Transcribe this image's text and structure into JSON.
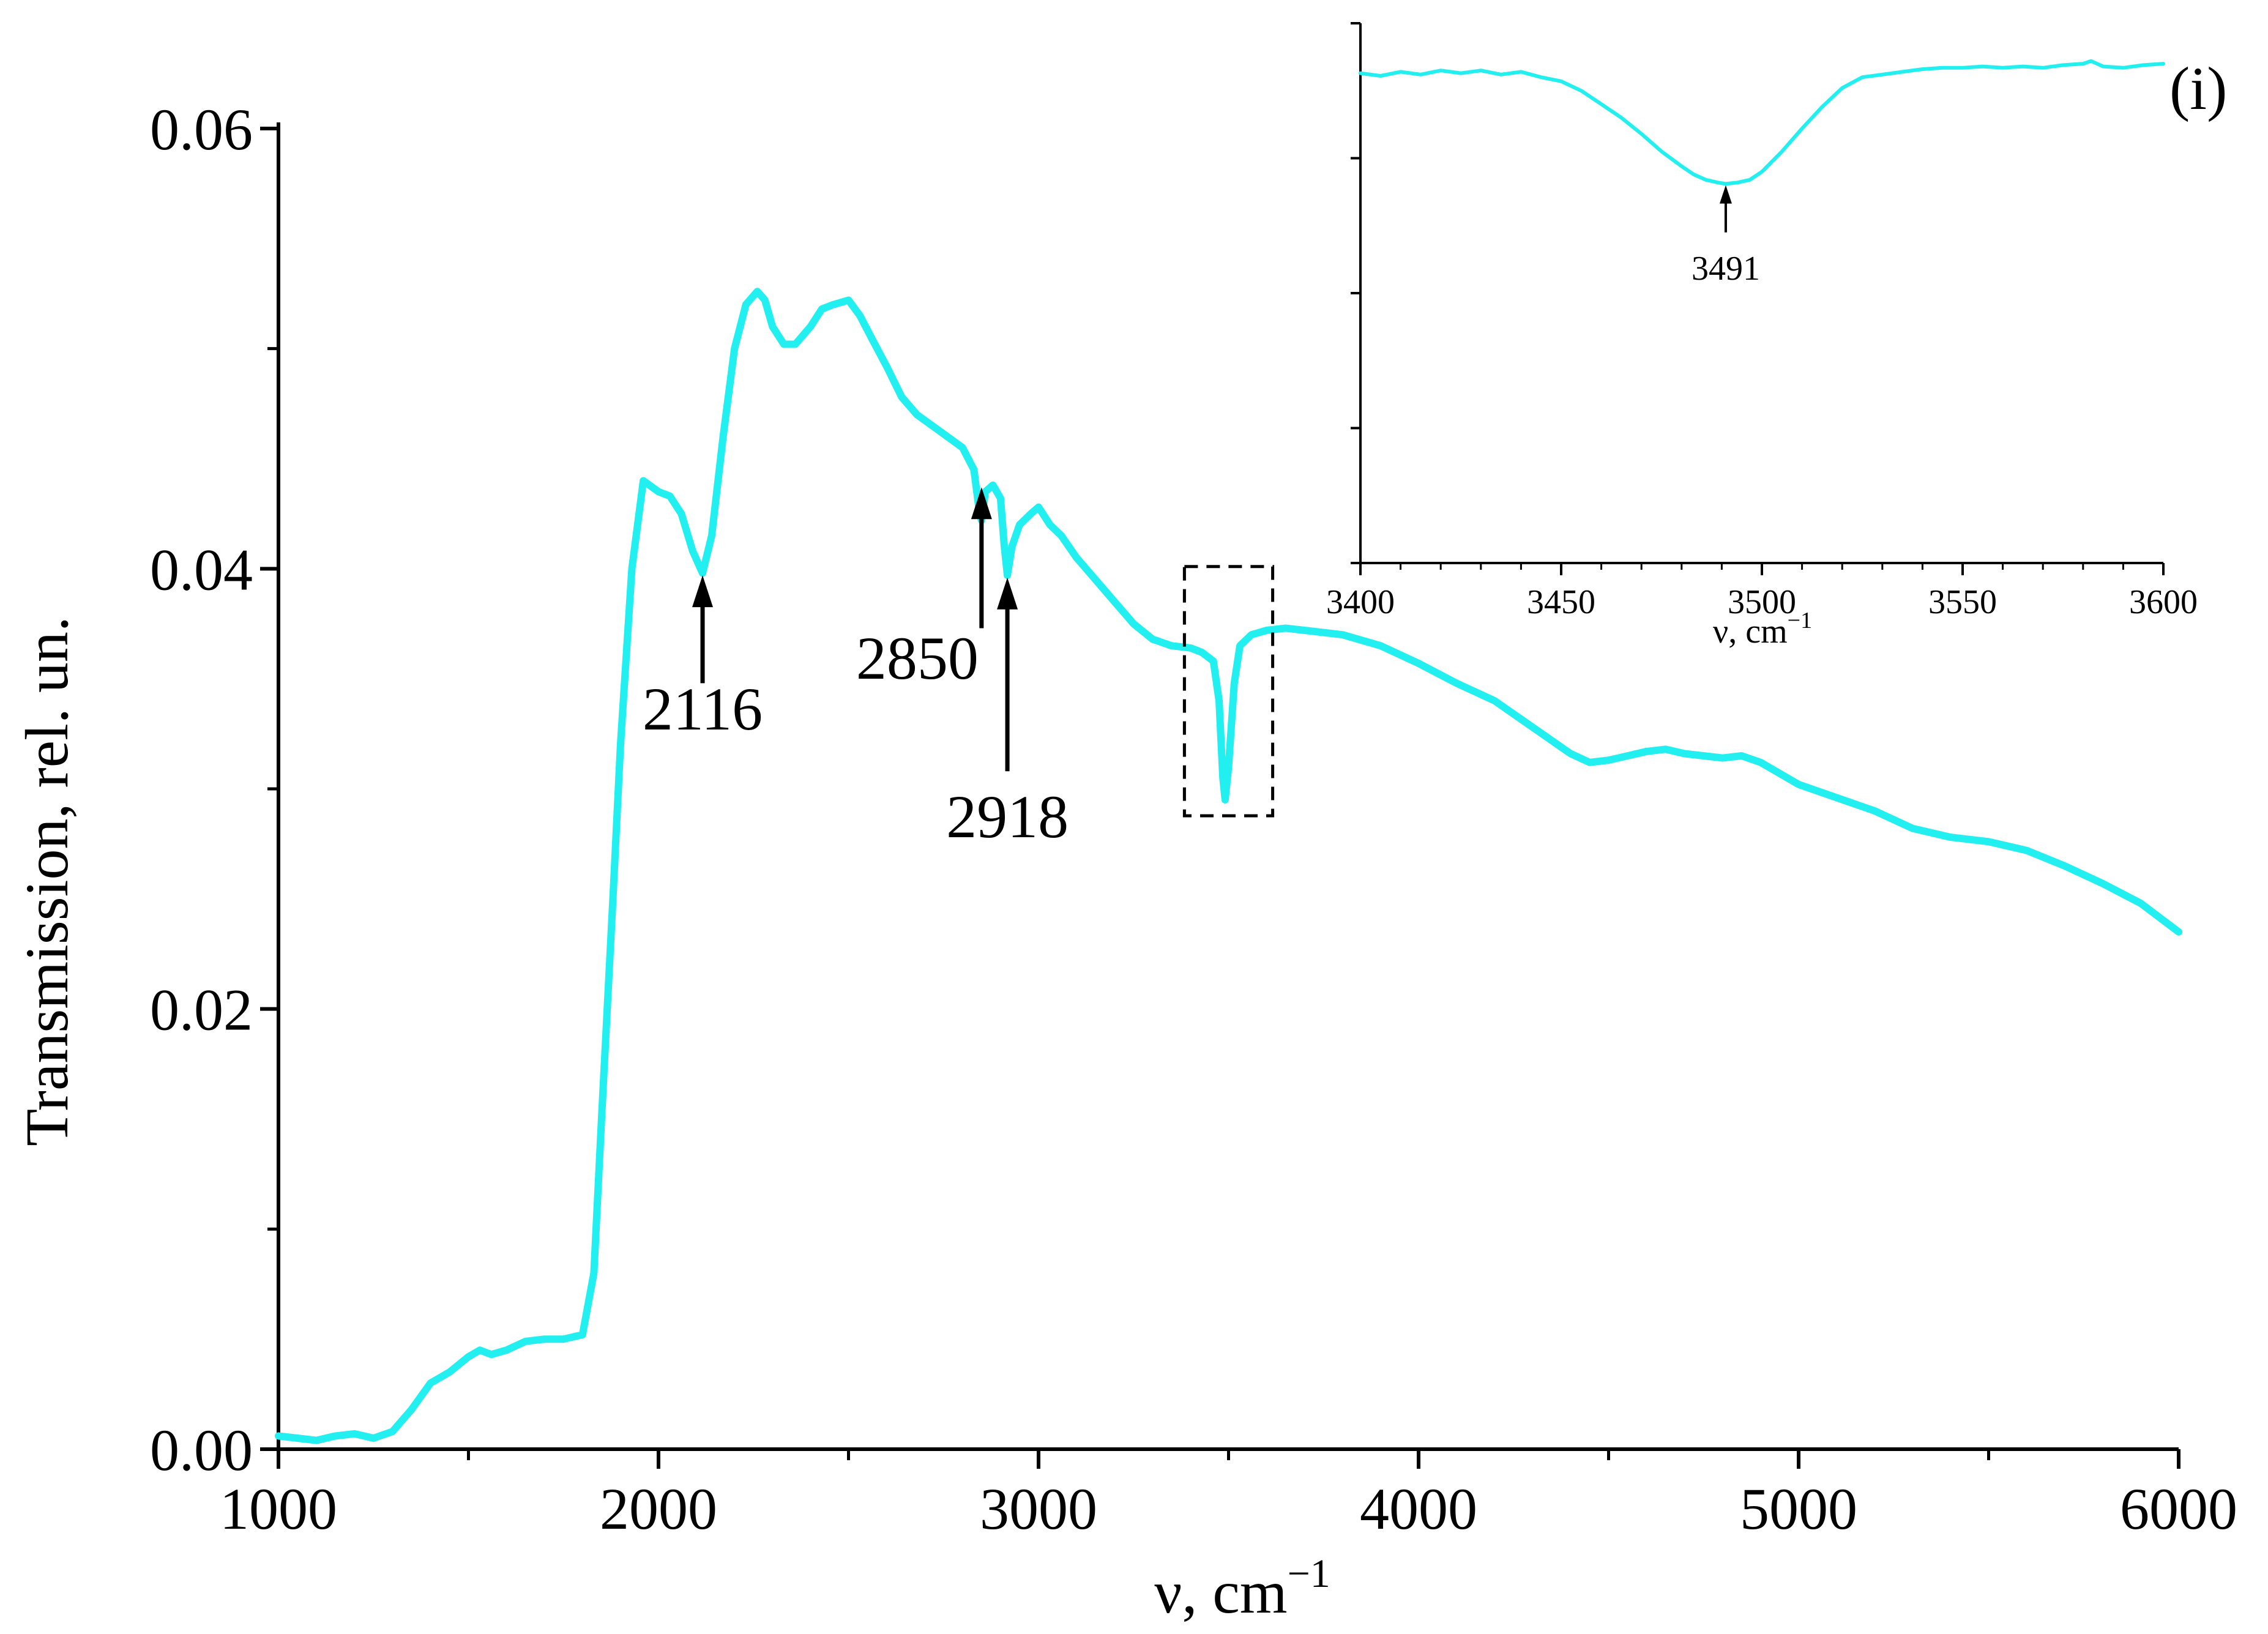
{
  "chart_data": [
    {
      "type": "line",
      "role": "main",
      "xlabel_symbol": "ν, cm",
      "xlabel_sup": "−1",
      "ylabel": "Transmission, rel. un.",
      "xlim": [
        1000,
        6000
      ],
      "ylim": [
        0.0,
        0.06
      ],
      "x_ticks": [
        1000,
        2000,
        3000,
        4000,
        5000,
        6000
      ],
      "x_tick_labels": [
        "1000",
        "2000",
        "3000",
        "4000",
        "5000",
        "6000"
      ],
      "y_ticks": [
        0.0,
        0.02,
        0.04,
        0.06
      ],
      "y_tick_labels": [
        "0.00",
        "0.02",
        "0.04",
        "0.06"
      ],
      "y_minor_ticks": [
        0.01,
        0.03,
        0.05
      ],
      "x_minor_ticks": [
        1500,
        2500,
        3500,
        4500,
        5500
      ],
      "grid": false,
      "series_color": "#22f0f0",
      "series": [
        {
          "x": [
            1000,
            1050,
            1100,
            1150,
            1200,
            1250,
            1300,
            1350,
            1400,
            1450,
            1500,
            1530,
            1560,
            1600,
            1650,
            1700,
            1750,
            1800,
            1830,
            1850,
            1880,
            1900,
            1930,
            1960,
            2000,
            2030,
            2060,
            2090,
            2116,
            2140,
            2170,
            2200,
            2230,
            2260,
            2280,
            2300,
            2330,
            2360,
            2400,
            2430,
            2460,
            2500,
            2530,
            2560,
            2600,
            2640,
            2680,
            2720,
            2760,
            2800,
            2830,
            2845,
            2850,
            2860,
            2880,
            2900,
            2910,
            2918,
            2930,
            2950,
            2980,
            3000,
            3030,
            3060,
            3100,
            3150,
            3200,
            3250,
            3300,
            3350,
            3400,
            3430,
            3460,
            3475,
            3485,
            3491,
            3500,
            3515,
            3530,
            3560,
            3600,
            3650,
            3700,
            3800,
            3900,
            4000,
            4100,
            4200,
            4300,
            4400,
            4450,
            4500,
            4600,
            4650,
            4700,
            4800,
            4850,
            4900,
            5000,
            5100,
            5200,
            5300,
            5400,
            5500,
            5600,
            5700,
            5800,
            5900,
            6000
          ],
          "y": [
            0.0006,
            0.0005,
            0.0004,
            0.0006,
            0.0007,
            0.0005,
            0.0008,
            0.0018,
            0.003,
            0.0035,
            0.0042,
            0.0045,
            0.0043,
            0.0045,
            0.0049,
            0.005,
            0.005,
            0.0052,
            0.008,
            0.015,
            0.025,
            0.032,
            0.04,
            0.044,
            0.0435,
            0.0433,
            0.0425,
            0.0408,
            0.0398,
            0.0415,
            0.046,
            0.05,
            0.052,
            0.0526,
            0.0522,
            0.051,
            0.0502,
            0.0502,
            0.051,
            0.0518,
            0.052,
            0.0522,
            0.0515,
            0.0505,
            0.0492,
            0.0478,
            0.047,
            0.0465,
            0.046,
            0.0455,
            0.0445,
            0.0425,
            0.0422,
            0.0435,
            0.0438,
            0.0432,
            0.041,
            0.0397,
            0.041,
            0.042,
            0.0425,
            0.0428,
            0.042,
            0.0415,
            0.0405,
            0.0395,
            0.0385,
            0.0375,
            0.0368,
            0.0365,
            0.0364,
            0.0362,
            0.0358,
            0.034,
            0.0305,
            0.0295,
            0.031,
            0.0348,
            0.0365,
            0.037,
            0.0372,
            0.0373,
            0.0372,
            0.037,
            0.0365,
            0.0357,
            0.0348,
            0.034,
            0.0328,
            0.0316,
            0.0312,
            0.0313,
            0.0317,
            0.0318,
            0.0316,
            0.0314,
            0.0315,
            0.0312,
            0.0302,
            0.0296,
            0.029,
            0.0282,
            0.0278,
            0.0276,
            0.0272,
            0.0265,
            0.0257,
            0.0248,
            0.0235
          ]
        }
      ],
      "annotations": [
        {
          "label": "2116",
          "x": 2116
        },
        {
          "label": "2850",
          "x": 2850
        },
        {
          "label": "2918",
          "x": 2918
        }
      ],
      "highlight_box": {
        "x_range": [
          3400,
          3600
        ],
        "y_range": [
          0.029,
          0.0401
        ],
        "style": "dashed"
      }
    },
    {
      "type": "line",
      "role": "inset",
      "panel_label": "(i)",
      "xlabel_symbol": "ν, cm",
      "xlabel_sup": "−1",
      "xlim": [
        3400,
        3600
      ],
      "ylim": [
        0,
        4
      ],
      "x_ticks": [
        3400,
        3450,
        3500,
        3550,
        3600
      ],
      "x_tick_labels": [
        "3400",
        "3450",
        "3500",
        "3550",
        "3600"
      ],
      "x_minor_ticks": [
        3410,
        3420,
        3430,
        3440,
        3460,
        3470,
        3480,
        3490,
        3510,
        3520,
        3530,
        3540,
        3560,
        3570,
        3580,
        3590
      ],
      "y_ticks": [
        0,
        1,
        2,
        3,
        4
      ],
      "series": [
        {
          "x": [
            3400,
            3405,
            3410,
            3415,
            3420,
            3425,
            3430,
            3435,
            3440,
            3445,
            3450,
            3455,
            3460,
            3465,
            3470,
            3475,
            3480,
            3483,
            3486,
            3489,
            3491,
            3494,
            3497,
            3500,
            3505,
            3510,
            3515,
            3520,
            3525,
            3530,
            3535,
            3540,
            3545,
            3550,
            3555,
            3560,
            3565,
            3570,
            3575,
            3580,
            3582,
            3585,
            3590,
            3595,
            3600
          ],
          "y": [
            3.63,
            3.61,
            3.64,
            3.62,
            3.65,
            3.63,
            3.65,
            3.62,
            3.64,
            3.6,
            3.57,
            3.5,
            3.4,
            3.3,
            3.18,
            3.05,
            2.94,
            2.88,
            2.84,
            2.82,
            2.81,
            2.82,
            2.84,
            2.9,
            3.05,
            3.22,
            3.38,
            3.52,
            3.6,
            3.62,
            3.64,
            3.66,
            3.67,
            3.67,
            3.68,
            3.67,
            3.68,
            3.67,
            3.69,
            3.7,
            3.72,
            3.68,
            3.67,
            3.69,
            3.7
          ]
        }
      ],
      "annotations": [
        {
          "label": "3491",
          "x": 3491
        }
      ]
    }
  ]
}
